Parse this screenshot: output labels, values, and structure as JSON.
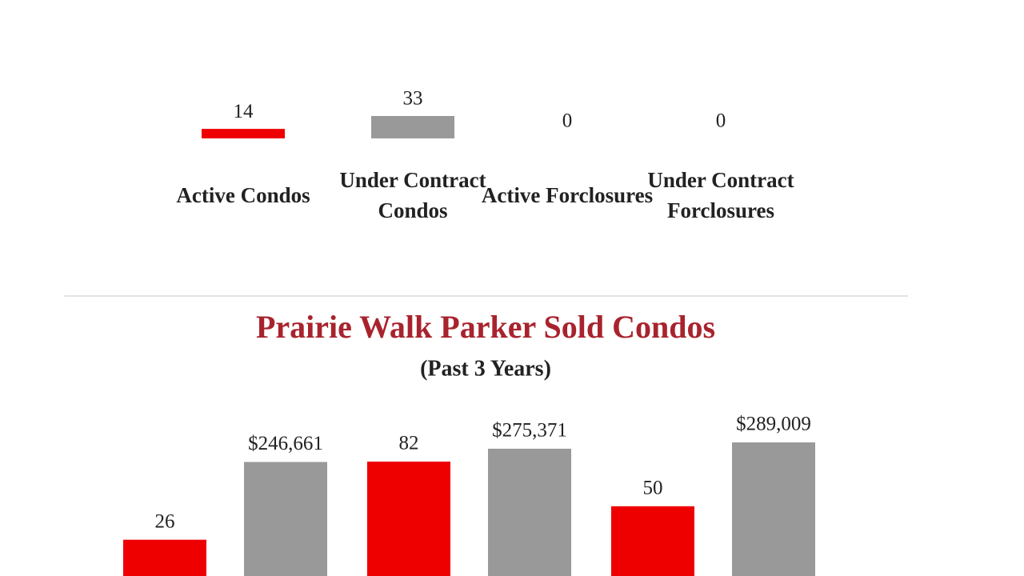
{
  "chart_data": [
    {
      "type": "bar",
      "categories": [
        "Active Condos",
        "Under Contract Condos",
        "Active Forclosures",
        "Under Contract Forclosures"
      ],
      "values": [
        14,
        33,
        0,
        0
      ],
      "colors": [
        "#ee0000",
        "#999999",
        "#ee0000",
        "#999999"
      ]
    },
    {
      "type": "bar",
      "title": "Prairie Walk Parker Sold Condos",
      "subtitle": "(Past 3 Years)",
      "categories": [
        null,
        null,
        null
      ],
      "series": [
        {
          "color": "#ee0000",
          "values": [
            26,
            82,
            50
          ]
        },
        {
          "color": "#999999",
          "values": [
            246661,
            275371,
            289009
          ],
          "value_labels": [
            "$246,661",
            "$275,371",
            "$289,009"
          ],
          "axis": "y2"
        }
      ]
    }
  ]
}
